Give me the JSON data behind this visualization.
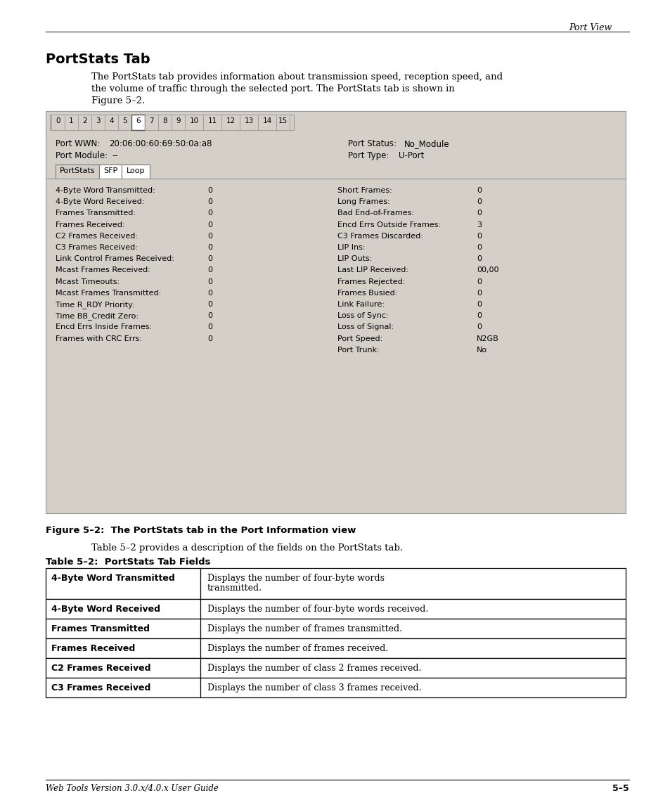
{
  "page_header_right": "Port View",
  "section_title": "PortStats Tab",
  "intro_lines": [
    "The PortStats tab provides information about transmission speed, reception speed, and",
    "the volume of traffic through the selected port. The PortStats tab is shown in",
    "Figure 5–2."
  ],
  "figure_caption": "Figure 5–2:  The PortStats tab in the Port Information view",
  "table_intro": "Table 5–2 provides a description of the fields on the PortStats tab.",
  "table_title": "Table 5–2:  PortStats Tab Fields",
  "port_tabs": [
    "0",
    "1",
    "2",
    "3",
    "4",
    "5",
    "6",
    "7",
    "8",
    "9",
    "10",
    "11",
    "12",
    "13",
    "14",
    "15"
  ],
  "active_tab": "6",
  "port_wwn_label": "Port WWN:",
  "port_wwn_value": "20:06:00:60:69:50:0a:a8",
  "port_module_label": "Port Module:",
  "port_module_value": "--",
  "port_status_label": "Port Status:",
  "port_status_value": "No_Module",
  "port_type_label": "Port Type:",
  "port_type_value": "U-Port",
  "nav_tabs": [
    "PortStats",
    "SFP",
    "Loop"
  ],
  "active_nav_tab": "PortStats",
  "left_stats": [
    [
      "4-Byte Word Transmitted:",
      "0"
    ],
    [
      "4-Byte Word Received:",
      "0"
    ],
    [
      "Frames Transmitted:",
      "0"
    ],
    [
      "Frames Received:",
      "0"
    ],
    [
      "C2 Frames Received:",
      "0"
    ],
    [
      "C3 Frames Received:",
      "0"
    ],
    [
      "Link Control Frames Received:",
      "0"
    ],
    [
      "Mcast Frames Received:",
      "0"
    ],
    [
      "Mcast Timeouts:",
      "0"
    ],
    [
      "Mcast Frames Transmitted:",
      "0"
    ],
    [
      "Time R_RDY Priority:",
      "0"
    ],
    [
      "Time BB_Credit Zero:",
      "0"
    ],
    [
      "Encd Errs Inside Frames:",
      "0"
    ],
    [
      "Frames with CRC Errs:",
      "0"
    ]
  ],
  "right_stats": [
    [
      "Short Frames:",
      "0"
    ],
    [
      "Long Frames:",
      "0"
    ],
    [
      "Bad End-of-Frames:",
      "0"
    ],
    [
      "Encd Errs Outside Frames:",
      "3"
    ],
    [
      "C3 Frames Discarded:",
      "0"
    ],
    [
      "LIP Ins:",
      "0"
    ],
    [
      "LIP Outs:",
      "0"
    ],
    [
      "Last LIP Received:",
      "00,00"
    ],
    [
      "Frames Rejected:",
      "0"
    ],
    [
      "Frames Busied:",
      "0"
    ],
    [
      "Link Failure:",
      "0"
    ],
    [
      "Loss of Sync:",
      "0"
    ],
    [
      "Loss of Signal:",
      "0"
    ],
    [
      "Port Speed:",
      "N2GB"
    ],
    [
      "Port Trunk:",
      "No"
    ]
  ],
  "table_rows": [
    [
      "4-Byte Word Transmitted",
      "Displays the number of four-byte words\ntransmitted."
    ],
    [
      "4-Byte Word Received",
      "Displays the number of four-byte words received."
    ],
    [
      "Frames Transmitted",
      "Displays the number of frames transmitted."
    ],
    [
      "Frames Received",
      "Displays the number of frames received."
    ],
    [
      "C2 Frames Received",
      "Displays the number of class 2 frames received."
    ],
    [
      "C3 Frames Received",
      "Displays the number of class 3 frames received."
    ]
  ],
  "footer_left": "Web Tools Version 3.0.x/4.0.x User Guide",
  "footer_right": "5–5",
  "bg_color": "#d4d0c8",
  "white": "#ffffff",
  "black": "#000000"
}
